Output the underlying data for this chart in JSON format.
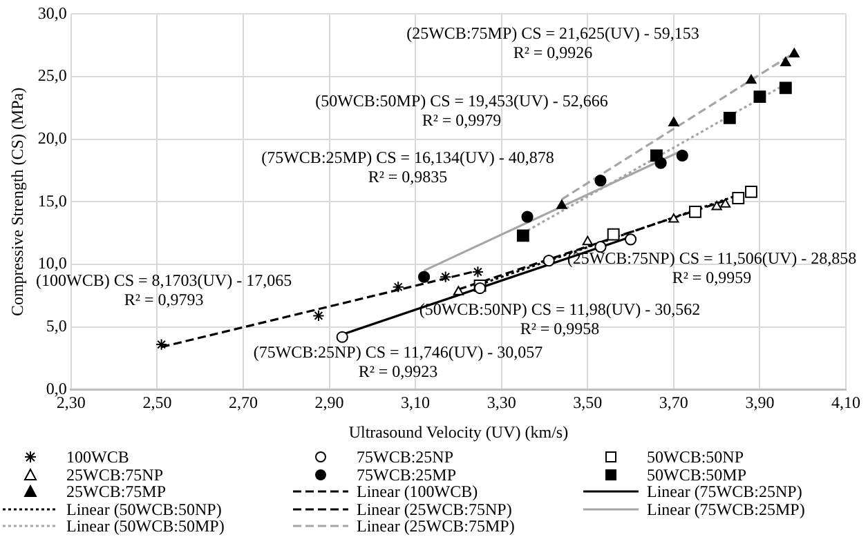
{
  "chart_data": {
    "type": "scatter",
    "xlabel": "Ultrasound Velocity (UV) (km/s)",
    "ylabel": "Compressive Strength (CS) (MPa)",
    "xlim": [
      2.3,
      4.1
    ],
    "xticks": [
      {
        "value": 2.3,
        "label": "2,30"
      },
      {
        "value": 2.5,
        "label": "2,50"
      },
      {
        "value": 2.7,
        "label": "2,70"
      },
      {
        "value": 2.9,
        "label": "2,90"
      },
      {
        "value": 3.1,
        "label": "3,10"
      },
      {
        "value": 3.3,
        "label": "3,30"
      },
      {
        "value": 3.5,
        "label": "3,50"
      },
      {
        "value": 3.7,
        "label": "3,70"
      },
      {
        "value": 3.9,
        "label": "3,90"
      },
      {
        "value": 4.1,
        "label": "4,10"
      }
    ],
    "ylim": [
      0,
      30
    ],
    "yticks": [
      {
        "value": 0,
        "label": "0,0"
      },
      {
        "value": 5,
        "label": "5,0"
      },
      {
        "value": 10,
        "label": "10,0"
      },
      {
        "value": 15,
        "label": "15,0"
      },
      {
        "value": 20,
        "label": "20,0"
      },
      {
        "value": 25,
        "label": "25,0"
      },
      {
        "value": 30,
        "label": "30,0"
      }
    ],
    "grid": true,
    "legend": "bottom",
    "series": [
      {
        "name": "100WCB",
        "marker": "cross",
        "color": "#000000",
        "x": [
          2.51,
          2.875,
          3.06,
          3.17,
          3.245
        ],
        "values": [
          3.6,
          5.9,
          8.2,
          9.0,
          9.4
        ]
      },
      {
        "name": "75WCB:25NP",
        "marker": "circle",
        "color": "#ffffff",
        "x": [
          2.93,
          3.25,
          3.41,
          3.53,
          3.6
        ],
        "values": [
          4.2,
          8.1,
          10.3,
          11.4,
          12.0
        ]
      },
      {
        "name": "50WCB:50NP",
        "marker": "square",
        "color": "#ffffff",
        "x": [
          3.25,
          3.56,
          3.75,
          3.85,
          3.88
        ],
        "values": [
          8.3,
          12.4,
          14.2,
          15.3,
          15.8
        ]
      },
      {
        "name": "25WCB:75NP",
        "marker": "triangle",
        "color": "#ffffff",
        "x": [
          3.2,
          3.5,
          3.7,
          3.8,
          3.82
        ],
        "values": [
          7.8,
          11.8,
          13.6,
          14.6,
          14.8
        ]
      },
      {
        "name": "75WCB:25MP",
        "marker": "circle",
        "color": "#000000",
        "x": [
          3.12,
          3.36,
          3.53,
          3.67,
          3.72
        ],
        "values": [
          9.0,
          13.8,
          16.7,
          18.1,
          18.7
        ]
      },
      {
        "name": "50WCB:50MP",
        "marker": "square",
        "color": "#000000",
        "x": [
          3.35,
          3.66,
          3.83,
          3.9,
          3.96
        ],
        "values": [
          12.3,
          18.7,
          21.7,
          23.4,
          24.1
        ]
      },
      {
        "name": "25WCB:75MP",
        "marker": "triangle",
        "color": "#000000",
        "x": [
          3.44,
          3.7,
          3.88,
          3.96,
          3.98
        ],
        "values": [
          14.7,
          21.3,
          24.7,
          26.1,
          26.8
        ]
      },
      {
        "name": "Linear (100WCB)",
        "type": "line",
        "marker": "none",
        "line_style": "dashed",
        "color": "#000000",
        "x": [
          2.51,
          3.245
        ],
        "values": [
          3.4,
          9.5
        ]
      },
      {
        "name": "Linear (75WCB:25NP)",
        "type": "line",
        "marker": "none",
        "line_style": "solid",
        "color": "#000000",
        "x": [
          2.93,
          3.6
        ],
        "values": [
          4.4,
          12.2
        ]
      },
      {
        "name": "Linear (50WCB:50NP)",
        "type": "line",
        "marker": "none",
        "line_style": "dotted",
        "color": "#000000",
        "x": [
          3.25,
          3.88
        ],
        "values": [
          8.4,
          15.9
        ]
      },
      {
        "name": "Linear (25WCB:75NP)",
        "type": "line",
        "marker": "none",
        "line_style": "dashed",
        "color": "#000000",
        "x": [
          3.2,
          3.82
        ],
        "values": [
          8.0,
          15.1
        ]
      },
      {
        "name": "Linear (75WCB:25MP)",
        "type": "line",
        "marker": "none",
        "line_style": "solid",
        "color": "#a6a6a6",
        "x": [
          3.12,
          3.72
        ],
        "values": [
          9.5,
          19.1
        ]
      },
      {
        "name": "Linear (50WCB:50MP)",
        "type": "line",
        "marker": "none",
        "line_style": "dotted",
        "color": "#a6a6a6",
        "x": [
          3.35,
          3.96
        ],
        "values": [
          12.5,
          24.4
        ]
      },
      {
        "name": "Linear (25WCB:75MP)",
        "type": "line",
        "marker": "none",
        "line_style": "dashed",
        "color": "#a6a6a6",
        "x": [
          3.44,
          3.98
        ],
        "values": [
          15.2,
          26.9
        ]
      }
    ],
    "annotations": [
      "(25WCB:75MP) CS = 21,625(UV) - 59,153\nR² = 0,9926",
      "(50WCB:50MP) CS = 19,453(UV) - 52,666\nR² = 0,9979",
      "(75WCB:25MP) CS = 16,134(UV) - 40,878\nR² = 0,9835",
      "(100WCB) CS = 8,1703(UV) - 17,065\nR² = 0,9793",
      "(25WCB:75NP) CS = 11,506(UV) - 28,858\nR² = 0,9959",
      "(50WCB:50NP) CS = 11,98(UV) - 30,562\nR² = 0,9958",
      "(75WCB:25NP) CS = 11,746(UV) - 30,057\nR² = 0,9923"
    ]
  }
}
